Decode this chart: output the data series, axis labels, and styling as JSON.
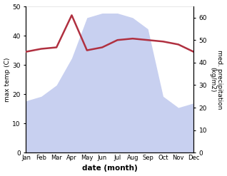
{
  "months": [
    "Jan",
    "Feb",
    "Mar",
    "Apr",
    "May",
    "Jun",
    "Jul",
    "Aug",
    "Sep",
    "Oct",
    "Nov",
    "Dec"
  ],
  "month_indices": [
    0,
    1,
    2,
    3,
    4,
    5,
    6,
    7,
    8,
    9,
    10,
    11
  ],
  "temperature": [
    34.5,
    35.5,
    36,
    47,
    35,
    36,
    38.5,
    39,
    38.5,
    38,
    37,
    34.5
  ],
  "precipitation": [
    23,
    25,
    30,
    42,
    60,
    62,
    62,
    60,
    55,
    25,
    20,
    22
  ],
  "temp_color": "#b03040",
  "precip_fill_color": "#c8d0f0",
  "temp_ylim": [
    0,
    50
  ],
  "precip_ylim": [
    0,
    65
  ],
  "temp_yticks": [
    0,
    10,
    20,
    30,
    40,
    50
  ],
  "precip_yticks": [
    0,
    10,
    20,
    30,
    40,
    50,
    60
  ],
  "xlabel": "date (month)",
  "ylabel_left": "max temp (C)",
  "ylabel_right": "med. precipitation\n(kg/m2)",
  "background_color": "#ffffff",
  "temp_linewidth": 1.8
}
